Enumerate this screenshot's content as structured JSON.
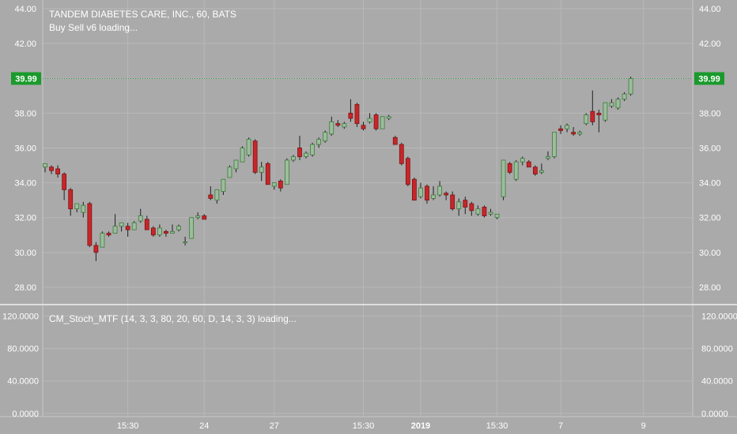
{
  "legend": {
    "symbol_line": "TANDEM DIABETES CARE, INC., 60, BATS",
    "indicator_line": "Buy Sell v6 loading..."
  },
  "lower_legend": "CM_Stoch_MTF (14, 3, 3, 80, 20, 60, D, 14, 3, 3) loading...",
  "price_tag": {
    "label": "39.99",
    "value": 39.99
  },
  "colors": {
    "background": "#aaaaaa",
    "grid": "#b8b8b8",
    "up_body": "#9cbd9c",
    "up_border": "#3e7a3e",
    "down_body": "#c8262a",
    "wick": "#202020",
    "price_line": "#2e9e3e",
    "price_tag": "#1a9a2c",
    "text": "#ffffff"
  },
  "chart_data": [
    {
      "type": "candlestick",
      "title": "TANDEM DIABETES CARE, INC., 60, BATS",
      "ylim": [
        27,
        44.5
      ],
      "y_ticks": [
        "44.00",
        "42.00",
        "40.00",
        "38.00",
        "36.00",
        "34.00",
        "32.00",
        "30.00",
        "28.00"
      ],
      "y_tick_values": [
        44,
        42,
        40,
        38,
        36,
        34,
        32,
        30,
        28
      ],
      "x_ticks": [
        "15:30",
        "24",
        "27",
        "15:30",
        "2019",
        "15:30",
        "7",
        "9"
      ],
      "x_tick_index": [
        13,
        25,
        36,
        50,
        59,
        71,
        81,
        94
      ],
      "grid": true,
      "candles": [
        {
          "o": 34.9,
          "h": 35.1,
          "l": 34.6,
          "c": 35.1
        },
        {
          "o": 34.9,
          "h": 35.0,
          "l": 34.5,
          "c": 34.7
        },
        {
          "o": 34.8,
          "h": 35.0,
          "l": 34.3,
          "c": 34.5
        },
        {
          "o": 34.5,
          "h": 34.6,
          "l": 33.0,
          "c": 33.6
        },
        {
          "o": 33.6,
          "h": 33.7,
          "l": 32.1,
          "c": 32.5
        },
        {
          "o": 32.5,
          "h": 32.8,
          "l": 32.3,
          "c": 32.8
        },
        {
          "o": 32.3,
          "h": 32.9,
          "l": 32.0,
          "c": 32.7
        },
        {
          "o": 32.8,
          "h": 32.9,
          "l": 30.3,
          "c": 30.4
        },
        {
          "o": 30.4,
          "h": 30.6,
          "l": 29.5,
          "c": 30.0
        },
        {
          "o": 30.3,
          "h": 31.2,
          "l": 30.3,
          "c": 31.1
        },
        {
          "o": 31.1,
          "h": 31.2,
          "l": 30.9,
          "c": 31.0
        },
        {
          "o": 31.1,
          "h": 32.2,
          "l": 31.1,
          "c": 31.5
        },
        {
          "o": 31.5,
          "h": 31.7,
          "l": 31.2,
          "c": 31.7
        },
        {
          "o": 31.5,
          "h": 31.7,
          "l": 30.9,
          "c": 31.3
        },
        {
          "o": 31.3,
          "h": 31.8,
          "l": 31.3,
          "c": 31.7
        },
        {
          "o": 31.8,
          "h": 32.5,
          "l": 31.7,
          "c": 32.1
        },
        {
          "o": 31.9,
          "h": 32.1,
          "l": 31.3,
          "c": 31.3
        },
        {
          "o": 31.4,
          "h": 31.5,
          "l": 30.9,
          "c": 31.0
        },
        {
          "o": 31.0,
          "h": 31.6,
          "l": 30.9,
          "c": 31.4
        },
        {
          "o": 31.2,
          "h": 31.3,
          "l": 30.9,
          "c": 31.1
        },
        {
          "o": 31.1,
          "h": 31.6,
          "l": 31.1,
          "c": 31.2
        },
        {
          "o": 31.3,
          "h": 31.6,
          "l": 31.2,
          "c": 31.5
        },
        {
          "o": 30.6,
          "h": 30.9,
          "l": 30.4,
          "c": 30.6
        },
        {
          "o": 30.8,
          "h": 32.0,
          "l": 30.8,
          "c": 32.0
        },
        {
          "o": 32.0,
          "h": 32.3,
          "l": 31.9,
          "c": 32.1
        },
        {
          "o": 32.1,
          "h": 32.2,
          "l": 31.9,
          "c": 31.9
        },
        {
          "o": 33.3,
          "h": 33.8,
          "l": 33.0,
          "c": 33.1
        },
        {
          "o": 33.0,
          "h": 33.6,
          "l": 32.8,
          "c": 33.6
        },
        {
          "o": 33.5,
          "h": 34.2,
          "l": 33.3,
          "c": 34.2
        },
        {
          "o": 34.3,
          "h": 35.0,
          "l": 34.3,
          "c": 34.9
        },
        {
          "o": 34.8,
          "h": 35.3,
          "l": 34.6,
          "c": 35.3
        },
        {
          "o": 35.2,
          "h": 36.1,
          "l": 35.2,
          "c": 36.0
        },
        {
          "o": 35.6,
          "h": 36.6,
          "l": 35.5,
          "c": 36.5
        },
        {
          "o": 36.4,
          "h": 36.5,
          "l": 34.5,
          "c": 34.6
        },
        {
          "o": 34.6,
          "h": 35.2,
          "l": 34.1,
          "c": 34.9
        },
        {
          "o": 35.1,
          "h": 35.2,
          "l": 33.9,
          "c": 33.9
        },
        {
          "o": 33.8,
          "h": 34.0,
          "l": 33.6,
          "c": 34.0
        },
        {
          "o": 34.1,
          "h": 34.2,
          "l": 33.5,
          "c": 33.7
        },
        {
          "o": 33.9,
          "h": 35.4,
          "l": 33.9,
          "c": 35.3
        },
        {
          "o": 35.3,
          "h": 35.6,
          "l": 35.2,
          "c": 35.5
        },
        {
          "o": 36.0,
          "h": 36.7,
          "l": 35.3,
          "c": 35.5
        },
        {
          "o": 35.5,
          "h": 35.8,
          "l": 35.4,
          "c": 35.7
        },
        {
          "o": 35.6,
          "h": 36.3,
          "l": 35.5,
          "c": 36.2
        },
        {
          "o": 36.2,
          "h": 36.6,
          "l": 36.0,
          "c": 36.5
        },
        {
          "o": 36.4,
          "h": 37.0,
          "l": 36.3,
          "c": 36.9
        },
        {
          "o": 36.8,
          "h": 37.8,
          "l": 36.7,
          "c": 37.5
        },
        {
          "o": 37.4,
          "h": 37.6,
          "l": 37.2,
          "c": 37.3
        },
        {
          "o": 37.2,
          "h": 37.5,
          "l": 37.1,
          "c": 37.4
        },
        {
          "o": 38.0,
          "h": 38.8,
          "l": 37.5,
          "c": 37.7
        },
        {
          "o": 38.5,
          "h": 38.6,
          "l": 37.2,
          "c": 37.4
        },
        {
          "o": 37.3,
          "h": 37.5,
          "l": 37.0,
          "c": 37.1
        },
        {
          "o": 37.5,
          "h": 38.0,
          "l": 37.4,
          "c": 37.7
        },
        {
          "o": 37.9,
          "h": 38.0,
          "l": 37.0,
          "c": 37.1
        },
        {
          "o": 37.1,
          "h": 37.8,
          "l": 37.1,
          "c": 37.8
        },
        {
          "o": 37.7,
          "h": 37.9,
          "l": 37.6,
          "c": 37.8
        },
        {
          "o": 36.6,
          "h": 36.7,
          "l": 36.2,
          "c": 36.2
        },
        {
          "o": 36.2,
          "h": 36.3,
          "l": 35.0,
          "c": 35.1
        },
        {
          "o": 35.4,
          "h": 35.5,
          "l": 33.8,
          "c": 33.9
        },
        {
          "o": 34.2,
          "h": 34.3,
          "l": 33.0,
          "c": 33.0
        },
        {
          "o": 33.2,
          "h": 34.0,
          "l": 33.1,
          "c": 33.7
        },
        {
          "o": 33.8,
          "h": 33.9,
          "l": 32.8,
          "c": 33.0
        },
        {
          "o": 33.1,
          "h": 33.8,
          "l": 33.0,
          "c": 33.3
        },
        {
          "o": 33.3,
          "h": 34.1,
          "l": 33.2,
          "c": 33.8
        },
        {
          "o": 33.4,
          "h": 33.5,
          "l": 33.0,
          "c": 33.3
        },
        {
          "o": 33.3,
          "h": 33.5,
          "l": 32.4,
          "c": 32.5
        },
        {
          "o": 32.5,
          "h": 33.1,
          "l": 32.1,
          "c": 32.9
        },
        {
          "o": 33.0,
          "h": 33.2,
          "l": 32.2,
          "c": 32.6
        },
        {
          "o": 32.8,
          "h": 32.9,
          "l": 32.1,
          "c": 32.4
        },
        {
          "o": 32.2,
          "h": 32.7,
          "l": 32.1,
          "c": 32.5
        },
        {
          "o": 32.6,
          "h": 32.7,
          "l": 32.0,
          "c": 32.1
        },
        {
          "o": 32.2,
          "h": 32.5,
          "l": 32.1,
          "c": 32.3
        },
        {
          "o": 32.0,
          "h": 32.2,
          "l": 31.9,
          "c": 32.2
        },
        {
          "o": 33.2,
          "h": 35.3,
          "l": 33.0,
          "c": 35.3
        },
        {
          "o": 35.1,
          "h": 35.2,
          "l": 34.5,
          "c": 34.6
        },
        {
          "o": 34.2,
          "h": 35.3,
          "l": 34.1,
          "c": 35.2
        },
        {
          "o": 35.2,
          "h": 35.5,
          "l": 35.0,
          "c": 35.4
        },
        {
          "o": 35.2,
          "h": 35.3,
          "l": 34.9,
          "c": 34.9
        },
        {
          "o": 34.9,
          "h": 35.0,
          "l": 34.4,
          "c": 34.5
        },
        {
          "o": 34.6,
          "h": 35.1,
          "l": 34.5,
          "c": 34.7
        },
        {
          "o": 35.4,
          "h": 35.8,
          "l": 35.3,
          "c": 35.5
        },
        {
          "o": 35.5,
          "h": 36.9,
          "l": 35.4,
          "c": 36.9
        },
        {
          "o": 37.1,
          "h": 37.3,
          "l": 36.8,
          "c": 37.0
        },
        {
          "o": 37.1,
          "h": 37.4,
          "l": 36.9,
          "c": 37.3
        },
        {
          "o": 36.9,
          "h": 37.2,
          "l": 36.7,
          "c": 36.8
        },
        {
          "o": 36.8,
          "h": 37.0,
          "l": 36.7,
          "c": 36.9
        },
        {
          "o": 37.4,
          "h": 38.0,
          "l": 37.3,
          "c": 37.9
        },
        {
          "o": 38.1,
          "h": 39.3,
          "l": 37.3,
          "c": 37.5
        },
        {
          "o": 38.0,
          "h": 38.2,
          "l": 36.9,
          "c": 37.9
        },
        {
          "o": 37.6,
          "h": 38.6,
          "l": 37.5,
          "c": 38.6
        },
        {
          "o": 38.4,
          "h": 38.8,
          "l": 38.3,
          "c": 38.6
        },
        {
          "o": 38.3,
          "h": 38.9,
          "l": 38.2,
          "c": 38.8
        },
        {
          "o": 38.8,
          "h": 39.2,
          "l": 38.7,
          "c": 39.1
        },
        {
          "o": 39.1,
          "h": 40.1,
          "l": 39.0,
          "c": 39.99
        }
      ]
    },
    {
      "type": "line",
      "title": "CM_Stoch_MTF (14, 3, 3, 80, 20, 60, D, 14, 3, 3) loading...",
      "ylim": [
        -4,
        134
      ],
      "y_ticks": [
        "120.0000",
        "80.0000",
        "40.0000",
        "0.0000"
      ],
      "y_tick_values": [
        120,
        80,
        40,
        0
      ],
      "series": [],
      "grid": true
    }
  ]
}
